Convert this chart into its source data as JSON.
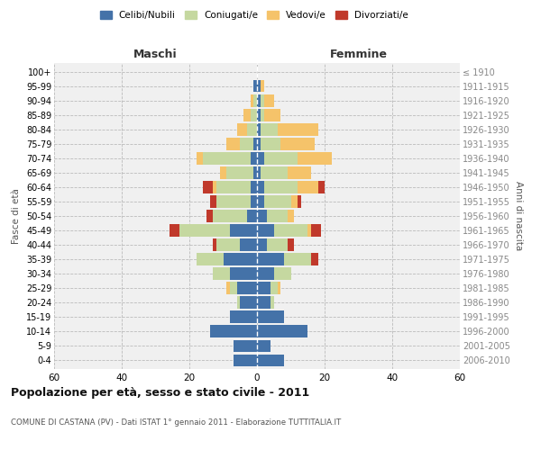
{
  "age_groups": [
    "0-4",
    "5-9",
    "10-14",
    "15-19",
    "20-24",
    "25-29",
    "30-34",
    "35-39",
    "40-44",
    "45-49",
    "50-54",
    "55-59",
    "60-64",
    "65-69",
    "70-74",
    "75-79",
    "80-84",
    "85-89",
    "90-94",
    "95-99",
    "100+"
  ],
  "birth_years": [
    "2006-2010",
    "2001-2005",
    "1996-2000",
    "1991-1995",
    "1986-1990",
    "1981-1985",
    "1976-1980",
    "1971-1975",
    "1966-1970",
    "1961-1965",
    "1956-1960",
    "1951-1955",
    "1946-1950",
    "1941-1945",
    "1936-1940",
    "1931-1935",
    "1926-1930",
    "1921-1925",
    "1916-1920",
    "1911-1915",
    "≤ 1910"
  ],
  "males": {
    "celibi": [
      7,
      7,
      14,
      8,
      5,
      6,
      8,
      10,
      5,
      8,
      3,
      2,
      2,
      1,
      2,
      1,
      0,
      0,
      0,
      1,
      0
    ],
    "coniugati": [
      0,
      0,
      0,
      0,
      1,
      2,
      5,
      8,
      7,
      15,
      10,
      10,
      10,
      8,
      14,
      4,
      3,
      2,
      1,
      0,
      0
    ],
    "vedovi": [
      0,
      0,
      0,
      0,
      0,
      1,
      0,
      0,
      0,
      0,
      0,
      0,
      1,
      2,
      2,
      4,
      3,
      2,
      1,
      0,
      0
    ],
    "divorziati": [
      0,
      0,
      0,
      0,
      0,
      0,
      0,
      0,
      1,
      3,
      2,
      2,
      3,
      0,
      0,
      0,
      0,
      0,
      0,
      0,
      0
    ]
  },
  "females": {
    "nubili": [
      8,
      4,
      15,
      8,
      4,
      4,
      5,
      8,
      3,
      5,
      3,
      2,
      2,
      1,
      2,
      1,
      1,
      1,
      1,
      1,
      0
    ],
    "coniugate": [
      0,
      0,
      0,
      0,
      1,
      2,
      5,
      8,
      6,
      10,
      6,
      8,
      10,
      8,
      10,
      6,
      5,
      1,
      1,
      0,
      0
    ],
    "vedove": [
      0,
      0,
      0,
      0,
      0,
      1,
      0,
      0,
      0,
      1,
      2,
      2,
      6,
      7,
      10,
      10,
      12,
      5,
      3,
      1,
      0
    ],
    "divorziate": [
      0,
      0,
      0,
      0,
      0,
      0,
      0,
      2,
      2,
      3,
      0,
      1,
      2,
      0,
      0,
      0,
      0,
      0,
      0,
      0,
      0
    ]
  },
  "colors": {
    "celibi": "#4472a8",
    "coniugati": "#c5d8a0",
    "vedovi": "#f5c36a",
    "divorziati": "#c0392b"
  },
  "title": "Popolazione per età, sesso e stato civile - 2011",
  "subtitle": "COMUNE DI CASTANA (PV) - Dati ISTAT 1° gennaio 2011 - Elaborazione TUTTITALIA.IT",
  "xlabel_left": "Maschi",
  "xlabel_right": "Femmine",
  "ylabel_left": "Fasce di età",
  "ylabel_right": "Anni di nascita",
  "xlim": 60,
  "legend_labels": [
    "Celibi/Nubili",
    "Coniugati/e",
    "Vedovi/e",
    "Divorziati/e"
  ],
  "background_color": "#ffffff",
  "plot_bg": "#f0f0f0",
  "grid_color": "#cccccc"
}
